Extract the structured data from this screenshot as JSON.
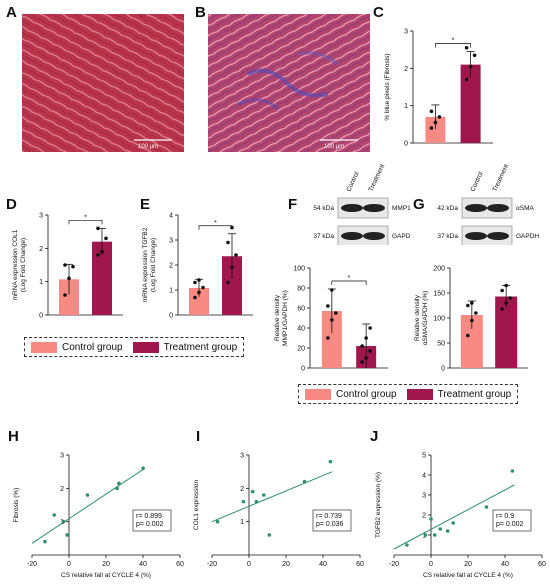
{
  "colors": {
    "control": "#f78a82",
    "treatment": "#a0174e",
    "scatter": "#2f8f6f",
    "tissue": "#b8334a",
    "collagen": "#6a5ab8"
  },
  "panels": {
    "A": {
      "letter": "A",
      "scale_bar": "100 µm"
    },
    "B": {
      "letter": "B",
      "scale_bar": "100 µm"
    },
    "C": {
      "letter": "C",
      "significance": "*"
    },
    "D": {
      "letter": "D",
      "significance": "*"
    },
    "E": {
      "letter": "E",
      "significance": "*"
    },
    "F": {
      "letter": "F",
      "significance": "*"
    },
    "G": {
      "letter": "G"
    },
    "H": {
      "letter": "H",
      "stats": "r= 0.899\np= 0.002"
    },
    "I": {
      "letter": "I",
      "stats": "r= 0.739\np= 0.036"
    },
    "J": {
      "letter": "J",
      "stats": "r= 0.9\np= 0.002"
    }
  },
  "blots": {
    "F": {
      "lanes": [
        "Control",
        "Treatment"
      ],
      "rows": [
        {
          "kda": "54 kDa",
          "protein": "MMP1"
        },
        {
          "kda": "37 kDa",
          "protein": "GAPDH"
        }
      ]
    },
    "G": {
      "lanes": [
        "Control",
        "Treatment"
      ],
      "rows": [
        {
          "kda": "42 kDa",
          "protein": "αSMA"
        },
        {
          "kda": "37 kDa",
          "protein": "GAPDH"
        }
      ]
    }
  },
  "legends": [
    {
      "control": "Control group",
      "treatment": "Treatment group"
    },
    {
      "control": "Control group",
      "treatment": "Treatment group"
    }
  ],
  "chart_data": [
    {
      "id": "C",
      "type": "bar",
      "ylabel": "% blue pixels (Fibrosis)",
      "ylim": [
        0,
        3
      ],
      "yticks": [
        0,
        1,
        2,
        3
      ],
      "series": [
        {
          "group": "control",
          "value": 0.7,
          "err": 0.32,
          "points": [
            0.4,
            0.55,
            0.7,
            0.85
          ]
        },
        {
          "group": "treatment",
          "value": 2.1,
          "err": 0.35,
          "points": [
            1.7,
            2.05,
            2.35,
            2.55
          ]
        }
      ]
    },
    {
      "id": "D",
      "type": "bar",
      "ylabel": "mRNA expression COL1\n(Log Fold Change)",
      "ylim": [
        0,
        3
      ],
      "yticks": [
        0,
        1,
        2,
        3
      ],
      "series": [
        {
          "group": "control",
          "value": 1.07,
          "err": 0.45,
          "points": [
            0.6,
            1.1,
            1.45,
            1.5
          ]
        },
        {
          "group": "treatment",
          "value": 2.2,
          "err": 0.4,
          "points": [
            1.8,
            1.9,
            2.3,
            2.6
          ]
        }
      ]
    },
    {
      "id": "E",
      "type": "bar",
      "ylabel": "mRNA expression TGFB2\n(Log Fold Change)",
      "ylim": [
        0,
        4
      ],
      "yticks": [
        0,
        1,
        2,
        3,
        4
      ],
      "series": [
        {
          "group": "control",
          "value": 1.08,
          "err": 0.35,
          "points": [
            0.7,
            0.9,
            1.1,
            1.3,
            1.4
          ]
        },
        {
          "group": "treatment",
          "value": 2.35,
          "err": 0.9,
          "points": [
            1.3,
            1.9,
            2.4,
            2.9,
            3.5
          ]
        }
      ]
    },
    {
      "id": "F",
      "type": "bar",
      "ylabel": "Relative density\nMMP1/GAPDH (%)",
      "ylim": [
        0,
        100
      ],
      "yticks": [
        0,
        20,
        40,
        60,
        80,
        100
      ],
      "series": [
        {
          "group": "control",
          "value": 57,
          "err": 22,
          "points": [
            30,
            48,
            55,
            62,
            78
          ]
        },
        {
          "group": "treatment",
          "value": 22,
          "err": 22,
          "points": [
            6,
            10,
            17,
            22,
            30,
            40
          ]
        }
      ]
    },
    {
      "id": "G",
      "type": "bar",
      "ylabel": "Relative density\nαSMA/GAPDH (%)",
      "ylim": [
        0,
        200
      ],
      "yticks": [
        0,
        50,
        100,
        150,
        200
      ],
      "series": [
        {
          "group": "control",
          "value": 106,
          "err": 28,
          "points": [
            65,
            95,
            110,
            125,
            130
          ]
        },
        {
          "group": "treatment",
          "value": 143,
          "err": 22,
          "points": [
            118,
            130,
            140,
            155,
            165
          ]
        }
      ]
    },
    {
      "id": "H",
      "type": "scatter",
      "xlabel": "CS relative fall at CYCLE 4 (%)",
      "ylabel": "Fibrosis (%)",
      "xlim": [
        -20,
        60
      ],
      "ylim": [
        0,
        3
      ],
      "xticks": [
        -20,
        0,
        20,
        40,
        60
      ],
      "yticks": [
        0,
        1,
        2,
        3
      ],
      "x": [
        -13,
        -8,
        -3,
        -1,
        10,
        26,
        27,
        40
      ],
      "y": [
        0.4,
        1.2,
        1.0,
        0.6,
        1.8,
        2.0,
        2.15,
        2.6
      ],
      "fit": [
        [
          -20,
          0.35
        ],
        [
          41,
          2.6
        ]
      ]
    },
    {
      "id": "I",
      "type": "scatter",
      "xlabel": "",
      "ylabel": "COL1 expression",
      "xlim": [
        -20,
        60
      ],
      "ylim": [
        0,
        3
      ],
      "xticks": [
        -20,
        0,
        20,
        40,
        60
      ],
      "yticks": [
        0,
        1,
        2,
        3
      ],
      "x": [
        -17,
        -3,
        2,
        4,
        8,
        11,
        30,
        44
      ],
      "y": [
        1.0,
        1.6,
        1.9,
        1.6,
        1.8,
        0.6,
        2.2,
        2.8
      ],
      "fit": [
        [
          -20,
          1.0
        ],
        [
          45,
          2.5
        ]
      ]
    },
    {
      "id": "J",
      "type": "scatter",
      "xlabel": "CS relative fall at CYCLE 4 (%)",
      "ylabel": "TGFB2 expression (%)",
      "xlim": [
        -20,
        60
      ],
      "ylim": [
        0,
        5
      ],
      "xticks": [
        -20,
        0,
        20,
        40,
        60
      ],
      "yticks": [
        0,
        1,
        2,
        3,
        4,
        5
      ],
      "x": [
        -13,
        -3,
        0,
        2,
        5,
        9,
        12,
        30,
        44
      ],
      "y": [
        0.5,
        1.0,
        1.8,
        1.0,
        1.3,
        1.2,
        1.6,
        2.4,
        4.2
      ],
      "fit": [
        [
          -20,
          0.3
        ],
        [
          45,
          3.5
        ]
      ]
    }
  ]
}
